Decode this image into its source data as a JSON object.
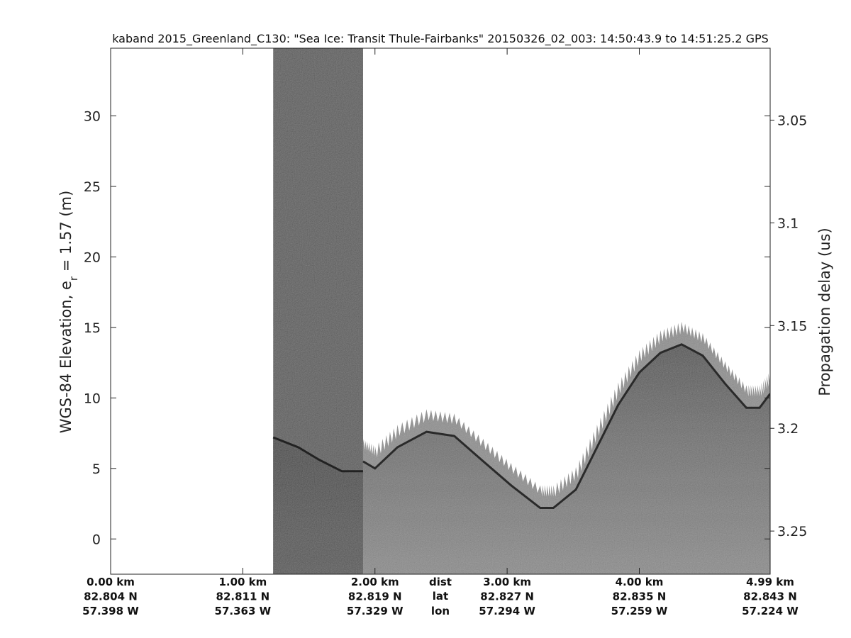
{
  "chart_data": {
    "type": "heatmap",
    "title": "kaband 2015_Greenland_C130: \"Sea Ice: Transit Thule-Fairbanks\"  20150326_02_003: 14:50:43.9 to 14:51:25.2 GPS",
    "ylabel_parts": [
      "WGS-84 Elevation, e",
      "r",
      " = 1.57 (m)"
    ],
    "y2label": "Propagation delay (us)",
    "ylim": [
      -2.5,
      34.8
    ],
    "y2lim": [
      3.015,
      3.271
    ],
    "xlim": [
      0,
      4.99
    ],
    "yticks": [
      0,
      5,
      10,
      15,
      20,
      25,
      30
    ],
    "y2ticks": [
      "3.05",
      "3.1",
      "3.15",
      "3.2",
      "3.25"
    ],
    "x_tick_km": [
      0,
      1,
      2,
      3,
      4,
      4.99
    ],
    "x_rows": {
      "dist": {
        "label": "dist",
        "values": [
          "0.00 km",
          "1.00 km",
          "2.00 km",
          "3.00 km",
          "4.00 km",
          "4.99 km"
        ]
      },
      "lat": {
        "label": "lat",
        "values": [
          "82.804 N",
          "82.811 N",
          "82.819 N",
          "82.827 N",
          "82.835 N",
          "82.843 N"
        ]
      },
      "lon": {
        "label": "lon",
        "values": [
          "57.398 W",
          "57.363 W",
          "57.329 W",
          "57.294 W",
          "57.259 W",
          "57.224 W"
        ]
      }
    },
    "colormap": "gray",
    "no_data_range_km": [
      0,
      1.23
    ],
    "dark_segment_km": [
      1.23,
      1.91
    ],
    "surface_segment_1": [
      [
        1.23,
        7.2
      ],
      [
        1.42,
        6.5
      ],
      [
        1.58,
        5.6
      ],
      [
        1.75,
        4.8
      ],
      [
        1.91,
        4.8
      ]
    ],
    "surface_segment_2": [
      [
        1.91,
        5.5
      ],
      [
        2.0,
        5.0
      ],
      [
        2.17,
        6.5
      ],
      [
        2.39,
        7.6
      ],
      [
        2.6,
        7.3
      ],
      [
        2.82,
        5.5
      ],
      [
        3.03,
        3.8
      ],
      [
        3.25,
        2.2
      ],
      [
        3.35,
        2.2
      ],
      [
        3.52,
        3.5
      ],
      [
        3.68,
        6.5
      ],
      [
        3.84,
        9.5
      ],
      [
        4.0,
        11.8
      ],
      [
        4.16,
        13.2
      ],
      [
        4.32,
        13.8
      ],
      [
        4.48,
        13.0
      ],
      [
        4.65,
        11.0
      ],
      [
        4.81,
        9.3
      ],
      [
        4.91,
        9.3
      ],
      [
        4.99,
        10.3
      ]
    ]
  }
}
